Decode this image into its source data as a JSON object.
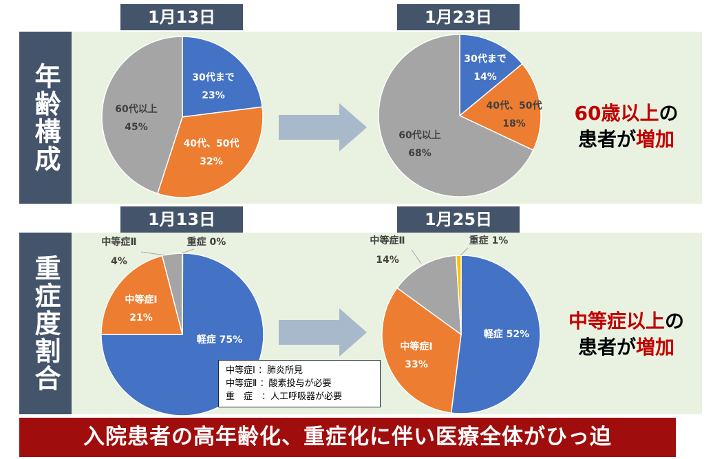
{
  "top": {
    "side_label": "年齢構成",
    "left_date": "1月13日",
    "right_date": "1月23日",
    "conclusion": {
      "red1": "60歳以上",
      "black1": "の",
      "black2": "患者が",
      "red2": "増加"
    }
  },
  "bottom": {
    "side_label": "重症度割合",
    "left_date": "1月13日",
    "right_date": "1月25日",
    "conclusion": {
      "red1": "中等症以上",
      "black1": "の",
      "black2": "患者が",
      "red2": "増加"
    }
  },
  "legend": [
    "中等症Ⅰ ：肺炎所見",
    "中等症Ⅱ ：酸素投与が必要",
    "重　症　：人工呼吸器が必要"
  ],
  "banner": "入院患者の高年齢化、重症化に伴い医療全体がひっ迫",
  "chart_data": [
    {
      "type": "pie",
      "title": "1月13日",
      "categories": [
        "30代まで",
        "40代、50代",
        "60代以上"
      ],
      "values": [
        23,
        32,
        45
      ],
      "colors": [
        "#4472c4",
        "#ed7d31",
        "#a5a5a5"
      ]
    },
    {
      "type": "pie",
      "title": "1月23日",
      "categories": [
        "30代まで",
        "40代、50代",
        "60代以上"
      ],
      "values": [
        14,
        18,
        68
      ],
      "colors": [
        "#4472c4",
        "#ed7d31",
        "#a5a5a5"
      ]
    },
    {
      "type": "pie",
      "title": "1月13日",
      "categories": [
        "軽症",
        "中等症Ⅰ",
        "中等症Ⅱ",
        "重症"
      ],
      "values": [
        75,
        21,
        4,
        0
      ],
      "colors": [
        "#4472c4",
        "#ed7d31",
        "#a5a5a5",
        "#ffc000"
      ]
    },
    {
      "type": "pie",
      "title": "1月25日",
      "categories": [
        "軽症",
        "中等症Ⅰ",
        "中等症Ⅱ",
        "重症"
      ],
      "values": [
        52,
        33,
        14,
        1
      ],
      "colors": [
        "#4472c4",
        "#ed7d31",
        "#a5a5a5",
        "#ffc000"
      ]
    }
  ]
}
